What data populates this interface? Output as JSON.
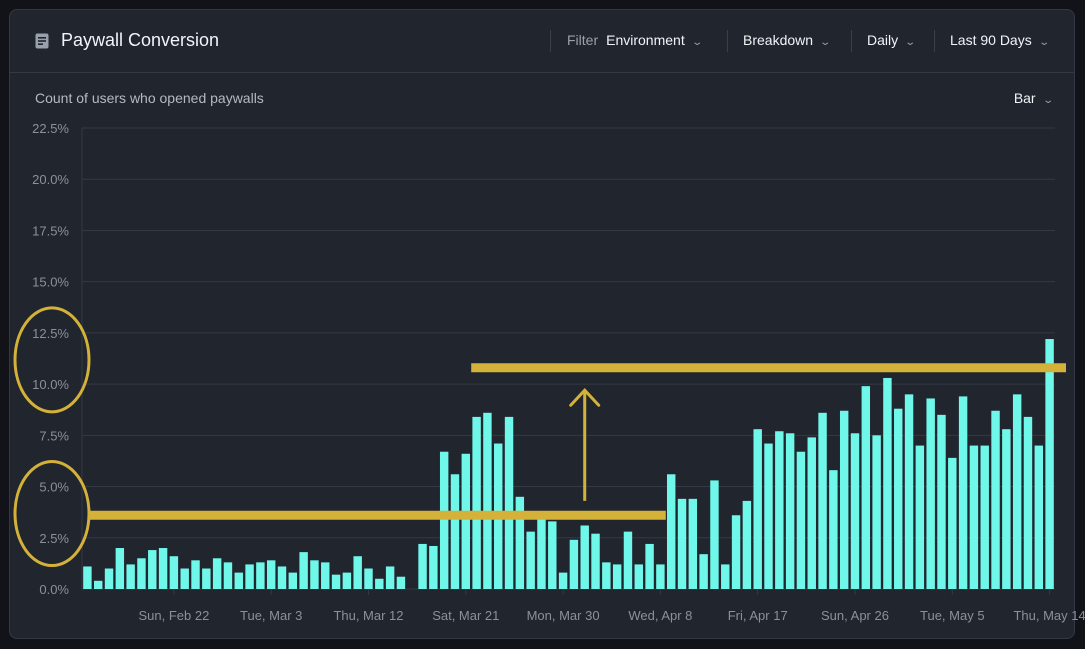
{
  "header": {
    "title": "Paywall Conversion",
    "icon": "document-icon",
    "filter_label": "Filter",
    "environment_label": "Environment",
    "breakdown_label": "Breakdown",
    "interval_label": "Daily",
    "range_label": "Last 90 Days"
  },
  "subtitle": "Count of users who opened paywalls",
  "chart_type_label": "Bar",
  "colors": {
    "bar": "#6ff7ea",
    "annotation": "#d4b23a",
    "background": "#21252e",
    "grid": "#343946"
  },
  "chart_data": {
    "type": "bar",
    "title": "Paywall Conversion",
    "subtitle": "Count of users who opened paywalls",
    "ylim": [
      0,
      22.5
    ],
    "y_ticks": [
      "0.0%",
      "2.5%",
      "5.0%",
      "7.5%",
      "10.0%",
      "12.5%",
      "15.0%",
      "17.5%",
      "20.0%",
      "22.5%"
    ],
    "x_tick_labels": [
      "Sun, Feb 22",
      "Tue, Mar 3",
      "Thu, Mar 12",
      "Sat, Mar 21",
      "Mon, Mar 30",
      "Wed, Apr 8",
      "Fri, Apr 17",
      "Sun, Apr 26",
      "Tue, May 5",
      "Thu, May 14"
    ],
    "x_tick_indices": [
      8,
      17,
      26,
      35,
      44,
      53,
      62,
      71,
      80,
      89
    ],
    "grid": true,
    "series": [
      {
        "values": [
          1.1,
          0.4,
          1.0,
          2.0,
          1.2,
          1.5,
          1.9,
          2.0,
          1.6,
          1.0,
          1.4,
          1.0,
          1.5,
          1.3,
          0.8,
          1.2,
          1.3,
          1.4,
          1.1,
          0.8,
          1.8,
          1.4,
          1.3,
          0.7,
          0.8,
          1.6,
          1.0,
          0.5,
          1.1,
          0.6,
          0.0,
          2.2,
          2.1,
          6.7,
          5.6,
          6.6,
          8.4,
          8.6,
          7.1,
          8.4,
          4.5,
          2.8,
          3.8,
          3.3,
          0.8,
          2.4,
          3.1,
          2.7,
          1.3,
          1.2,
          2.8,
          1.2,
          2.2,
          1.2,
          5.6,
          4.4,
          4.4,
          1.7,
          5.3,
          1.2,
          3.6,
          4.3,
          7.8,
          7.1,
          7.7,
          7.6,
          6.7,
          7.4,
          8.6,
          5.8,
          8.7,
          7.6,
          9.9,
          7.5,
          10.3,
          8.8,
          9.5,
          7.0,
          9.3,
          8.5,
          6.4,
          9.4,
          7.0,
          7.0,
          8.7,
          7.8,
          9.5,
          8.4,
          7.0,
          12.2
        ]
      }
    ],
    "annotations": [
      {
        "type": "hline",
        "y": 3.6,
        "from_index": 0,
        "to_index": 53
      },
      {
        "type": "hline",
        "y": 10.8,
        "from_index": 36,
        "to_index": 90
      },
      {
        "type": "arrow-up",
        "index": 46,
        "from_y": 4.3,
        "to_y": 9.7
      },
      {
        "type": "circle",
        "label": "12.5%"
      },
      {
        "type": "circle",
        "label": "5.0%"
      }
    ]
  }
}
